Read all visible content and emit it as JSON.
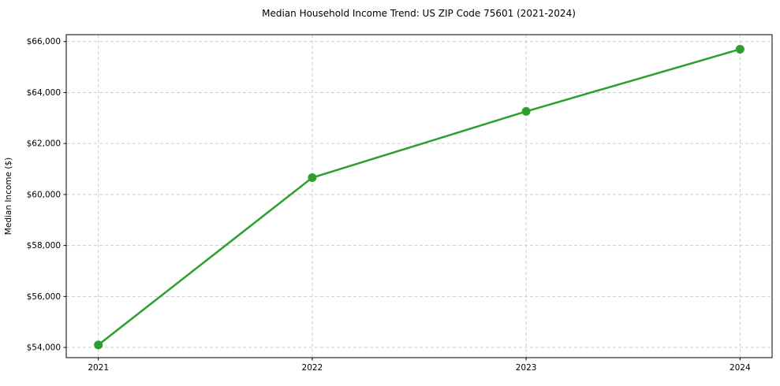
{
  "chart_data": {
    "type": "line",
    "title": "Median Household Income Trend: US ZIP Code 75601 (2021-2024)",
    "xlabel": "",
    "ylabel": "Median Income ($)",
    "x": [
      2021,
      2022,
      2023,
      2024
    ],
    "series": [
      {
        "name": "Median Household Income",
        "values": [
          54100,
          60660,
          63260,
          65700
        ]
      }
    ],
    "xtick_labels": [
      "2021",
      "2022",
      "2023",
      "2024"
    ],
    "yticks": [
      54000,
      56000,
      58000,
      60000,
      62000,
      64000,
      66000
    ],
    "ytick_labels": [
      "$54,000",
      "$56,000",
      "$58,000",
      "$60,000",
      "$62,000",
      "$64,000",
      "$66,000"
    ],
    "xlim": [
      2020.85,
      2024.15
    ],
    "ylim": [
      53600,
      66270
    ],
    "grid": true,
    "grid_style": "dashed",
    "legend": "none",
    "colors": {
      "line": "#2ca02c",
      "marker": "#2ca02c",
      "grid": "#cccccc",
      "spine": "#000000",
      "background": "#ffffff"
    }
  }
}
